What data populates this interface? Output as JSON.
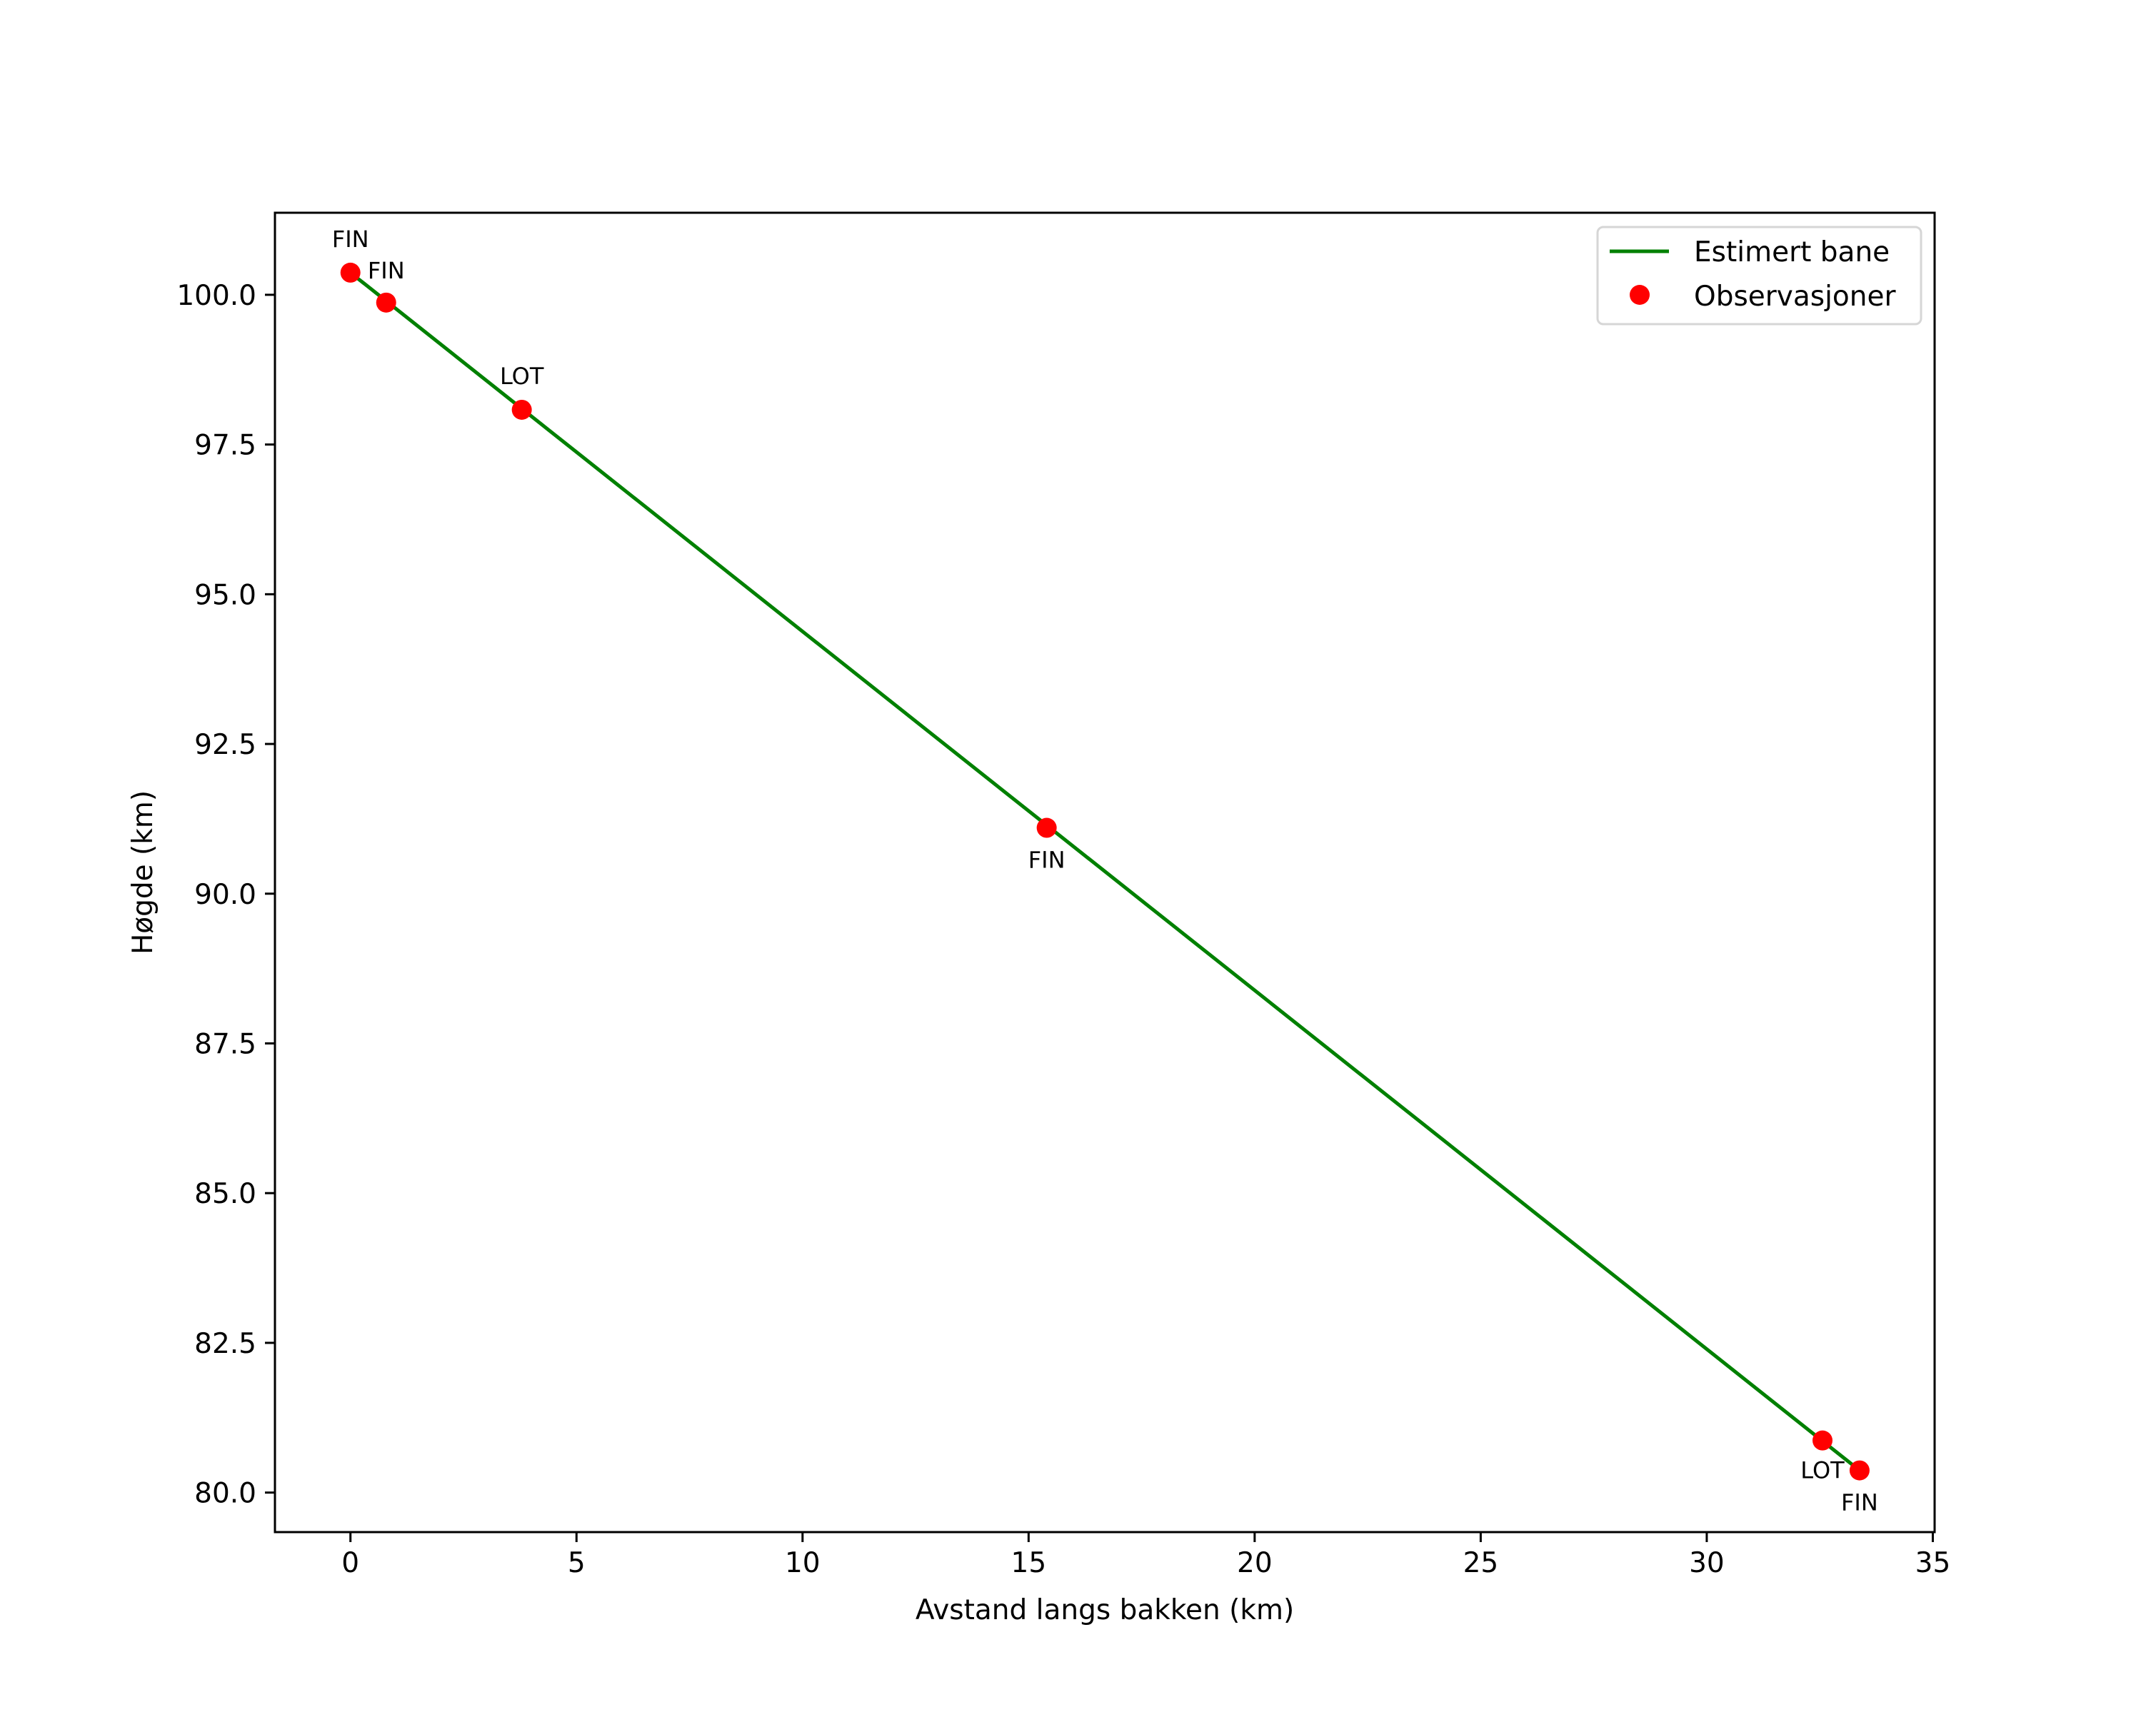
{
  "chart_data": {
    "type": "line",
    "title": "",
    "xlabel": "Avstand langs bakken (km)",
    "ylabel": "Høgde (km)",
    "xlim": [
      -1.67,
      35.04
    ],
    "ylim": [
      79.34,
      101.37
    ],
    "grid": false,
    "legend_position": "upper right",
    "xticks": [
      0,
      5,
      10,
      15,
      20,
      25,
      30,
      35
    ],
    "xtick_labels": [
      "0",
      "5",
      "10",
      "15",
      "20",
      "25",
      "30",
      "35"
    ],
    "yticks": [
      80.0,
      82.5,
      85.0,
      87.5,
      90.0,
      92.5,
      95.0,
      97.5,
      100.0
    ],
    "ytick_labels": [
      "80.0",
      "82.5",
      "85.0",
      "87.5",
      "90.0",
      "92.5",
      "95.0",
      "97.5",
      "100.0"
    ],
    "series": [
      {
        "name": "Estimert bane",
        "kind": "line",
        "color": "#008000",
        "x": [
          0.0,
          33.38
        ],
        "y": [
          100.37,
          80.37
        ]
      },
      {
        "name": "Observasjoner",
        "kind": "scatter",
        "color": "#ff0000",
        "points": [
          {
            "x": 0.0,
            "y": 100.37,
            "label": "FIN",
            "label_pos": "above"
          },
          {
            "x": 0.79,
            "y": 99.87,
            "label": "FIN",
            "label_pos": "above-right"
          },
          {
            "x": 3.79,
            "y": 98.08,
            "label": "LOT",
            "label_pos": "above"
          },
          {
            "x": 15.4,
            "y": 91.1,
            "label": "FIN",
            "label_pos": "below"
          },
          {
            "x": 32.56,
            "y": 80.87,
            "label": "LOT",
            "label_pos": "below"
          },
          {
            "x": 33.38,
            "y": 80.37,
            "label": "FIN",
            "label_pos": "below"
          }
        ]
      }
    ]
  },
  "legend": {
    "items": [
      {
        "label": "Estimert bane",
        "marker": "line",
        "color": "#008000"
      },
      {
        "label": "Observasjoner",
        "marker": "dot",
        "color": "#ff0000"
      }
    ]
  }
}
